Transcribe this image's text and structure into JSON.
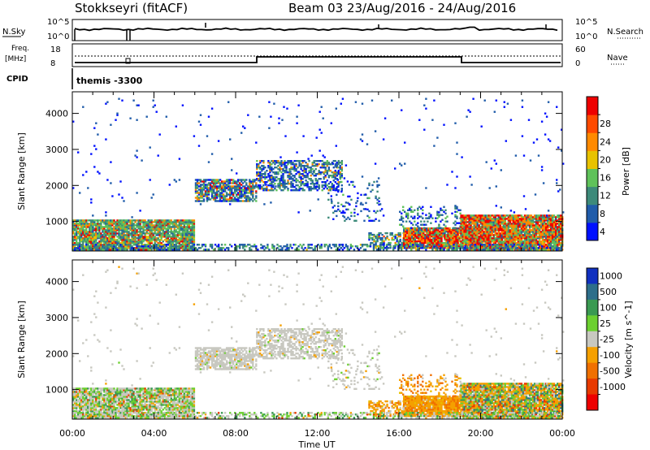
{
  "header": {
    "station": "Stokkseyri (fitACF)",
    "beam_dates": "Beam 03 23/Aug/2016 - 24/Aug/2016"
  },
  "top_panels": {
    "nsky_label": "N.Sky",
    "nsky_ticks": [
      "10^5",
      "10^0"
    ],
    "nsearch_label": "N.Search",
    "nsearch_ticks": [
      "10^5",
      "10^0"
    ],
    "freq_label": "Freq.",
    "freq_unit": "[MHz]",
    "freq_ticks": [
      "18",
      "8"
    ],
    "nave_label": "Nave",
    "nave_ticks": [
      "60",
      "0"
    ],
    "cpid_label": "CPID",
    "cpid_value": "themis -3300"
  },
  "chart_data": [
    {
      "type": "heatmap",
      "name": "power",
      "ylabel": "Slant Range [km]",
      "y_ticks": [
        "1000",
        "2000",
        "3000",
        "4000"
      ],
      "ylim": [
        180,
        4600
      ],
      "colorbar_label": "Power [dB]",
      "colorbar_ticks": [
        "4",
        "8",
        "12",
        "16",
        "20",
        "24",
        "28"
      ],
      "colors": [
        "#0010ff",
        "#205caa",
        "#3d8a7a",
        "#5fc25a",
        "#e8c200",
        "#ff8a00",
        "#ff4a00",
        "#ee0000"
      ],
      "x_ticks": [
        "00:00",
        "04:00",
        "08:00",
        "12:00",
        "16:00",
        "20:00",
        "00:00"
      ]
    },
    {
      "type": "heatmap",
      "name": "velocity",
      "ylabel": "Slant Range [km]",
      "y_ticks": [
        "1000",
        "2000",
        "3000",
        "4000"
      ],
      "ylim": [
        180,
        4600
      ],
      "colorbar_label": "Velocity [m s^-1]",
      "colorbar_ticks": [
        "1000",
        "500",
        "100",
        "25",
        "-25",
        "-100",
        "-500",
        "-1000"
      ],
      "colors": [
        "#1030c0",
        "#2d6e8a",
        "#3a9a52",
        "#6cd030",
        "#c8c8c0",
        "#f5a000",
        "#f07000",
        "#e83a00",
        "#ee0000"
      ],
      "x_ticks": [
        "00:00",
        "04:00",
        "08:00",
        "12:00",
        "16:00",
        "20:00",
        "00:00"
      ],
      "xlabel": "Time UT"
    }
  ]
}
